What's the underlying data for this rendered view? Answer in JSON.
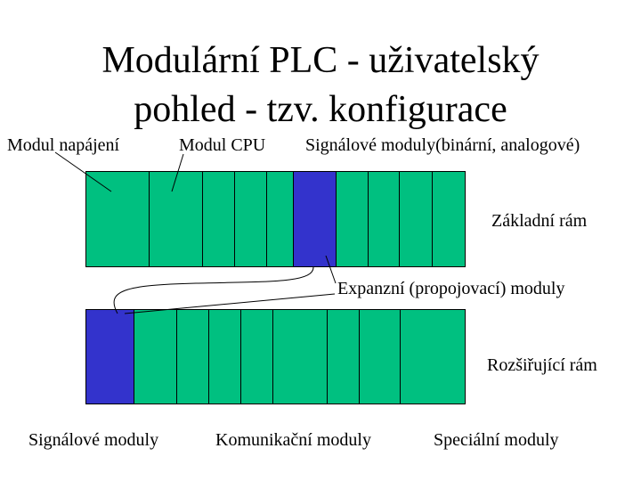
{
  "title": {
    "line1": "Modulární PLC - uživatelský",
    "line2": "pohled - tzv. konfigurace"
  },
  "labels": {
    "power_module": "Modul napájení",
    "cpu_module": "Modul CPU",
    "signal_modules_top": "Signálové moduly(binární, analogové)",
    "base_rack": "Základní rám",
    "expansion_modules": "Expanzní (propojovací) moduly",
    "expansion_rack": "Rozšiřující rám",
    "signal_modules_bottom": "Signálové moduly",
    "communication_modules": "Komunikační moduly",
    "special_modules": "Speciální moduly"
  },
  "colors": {
    "module_fill": "#00c080",
    "interface_fill": "#3333cc",
    "outline": "#000000"
  },
  "base_rack_modules": [
    {
      "kind": "power"
    },
    {
      "kind": "cpu"
    },
    {
      "kind": "signal"
    },
    {
      "kind": "signal"
    },
    {
      "kind": "signal"
    },
    {
      "kind": "interface"
    },
    {
      "kind": "signal"
    },
    {
      "kind": "signal"
    },
    {
      "kind": "signal"
    },
    {
      "kind": "signal"
    }
  ],
  "expansion_rack_modules": [
    {
      "kind": "interface"
    },
    {
      "kind": "signal"
    },
    {
      "kind": "signal"
    },
    {
      "kind": "signal"
    },
    {
      "kind": "communication"
    },
    {
      "kind": "communication"
    },
    {
      "kind": "communication"
    },
    {
      "kind": "special"
    },
    {
      "kind": "special"
    }
  ]
}
